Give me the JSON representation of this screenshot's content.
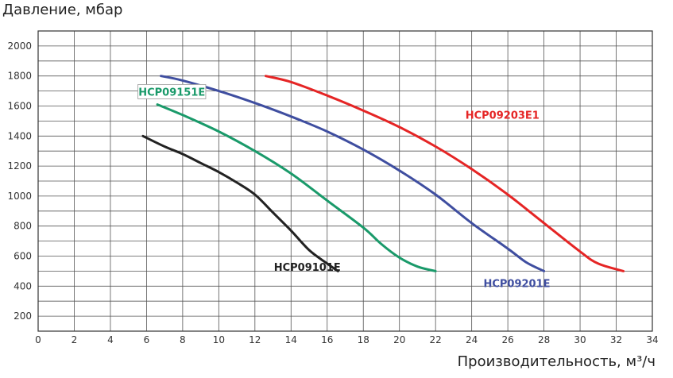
{
  "chart_data": {
    "type": "line",
    "title": "",
    "ylabel": "Давление, мбар",
    "xlabel": "Производительность, м³/ч",
    "xlim": [
      0,
      34
    ],
    "ylim": [
      100,
      2100
    ],
    "xticks": [
      0,
      2,
      4,
      6,
      8,
      10,
      12,
      14,
      16,
      18,
      20,
      22,
      24,
      26,
      28,
      30,
      32,
      34
    ],
    "yticks": [
      200,
      400,
      600,
      800,
      1000,
      1200,
      1400,
      1600,
      1800,
      2000
    ],
    "grid": true,
    "series": [
      {
        "name": "HCP09101E",
        "color": "#222222",
        "x": [
          5.8,
          7,
          8,
          9,
          10,
          11,
          12,
          13,
          14,
          15,
          16,
          16.6
        ],
        "y": [
          1400,
          1330,
          1280,
          1220,
          1160,
          1090,
          1010,
          890,
          770,
          640,
          550,
          500
        ]
      },
      {
        "name": "HCP09151E",
        "color": "#1a9a6a",
        "x": [
          6.6,
          8,
          10,
          12,
          14,
          16,
          18,
          19,
          20,
          21,
          22
        ],
        "y": [
          1610,
          1540,
          1430,
          1300,
          1150,
          970,
          790,
          680,
          590,
          530,
          500
        ]
      },
      {
        "name": "HCP09201E",
        "color": "#3f4ea0",
        "x": [
          6.8,
          8,
          10,
          12,
          14,
          16,
          18,
          20,
          22,
          24,
          26,
          27,
          28
        ],
        "y": [
          1800,
          1770,
          1700,
          1620,
          1530,
          1430,
          1310,
          1170,
          1010,
          820,
          650,
          560,
          500
        ]
      },
      {
        "name": "HCP09203E1",
        "color": "#e52525",
        "x": [
          12.6,
          14,
          16,
          18,
          20,
          22,
          24,
          26,
          28,
          30,
          31,
          32.4
        ],
        "y": [
          1800,
          1760,
          1670,
          1570,
          1460,
          1330,
          1180,
          1010,
          820,
          630,
          550,
          500
        ]
      }
    ],
    "annotations": [
      {
        "text": "HCP09151E",
        "color": "#1a9a6a",
        "at": [
          7.4,
          1685
        ],
        "boxed": true
      },
      {
        "text": "HCP09203E1",
        "color": "#e52525",
        "at": [
          25.7,
          1530
        ]
      },
      {
        "text": "HCP09101E",
        "color": "#222222",
        "at": [
          14.9,
          517
        ]
      },
      {
        "text": "HCP09201E",
        "color": "#3f4ea0",
        "at": [
          26.5,
          410
        ]
      }
    ]
  }
}
